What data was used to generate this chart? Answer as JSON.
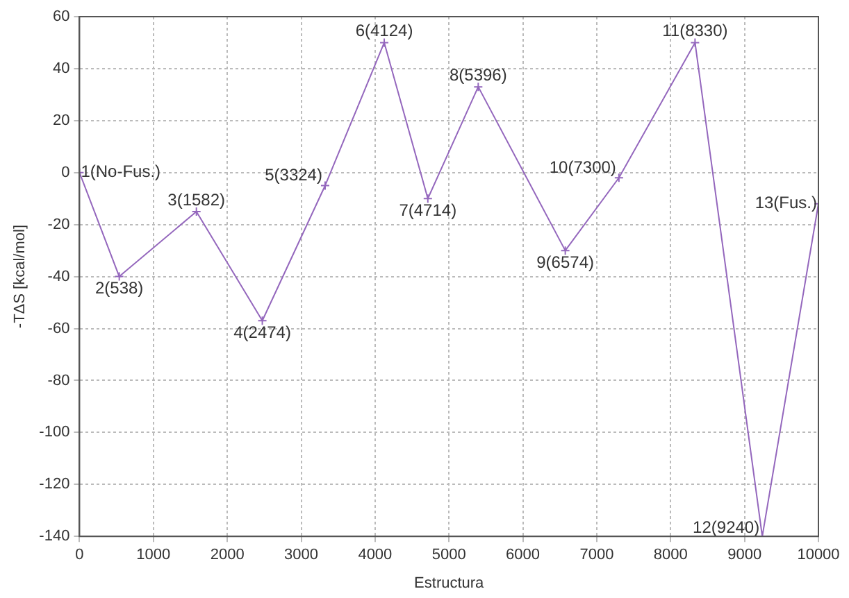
{
  "chart_data": {
    "type": "line",
    "xlabel": "Estructura",
    "ylabel": "-TΔS [kcal/mol]",
    "x": [
      0,
      538,
      1582,
      2474,
      3324,
      4124,
      4714,
      5396,
      6574,
      7300,
      8330,
      9240,
      10000
    ],
    "series": [
      {
        "color": "#9467bd",
        "values": [
          0,
          -40,
          -15,
          -57,
          -5,
          50,
          -10,
          33,
          -30,
          -2,
          50,
          -140,
          -12
        ]
      }
    ],
    "xlim": [
      0,
      10000
    ],
    "xticks": [
      0,
      1000,
      2000,
      3000,
      4000,
      5000,
      6000,
      7000,
      8000,
      9000,
      10000
    ],
    "ylim": [
      -140,
      60
    ],
    "yticks": [
      -140,
      -120,
      -100,
      -80,
      -60,
      -40,
      -20,
      0,
      20,
      40,
      60
    ],
    "grid": true,
    "marker": "cross",
    "line_style": "solid",
    "legend": false,
    "annotations": [
      {
        "text": "1(No-Fus.)",
        "x": 0,
        "y": 0
      },
      {
        "text": "2(538)",
        "x": 538,
        "y": -40
      },
      {
        "text": "3(1582)",
        "x": 1582,
        "y": -15
      },
      {
        "text": "4(2474)",
        "x": 2474,
        "y": -57
      },
      {
        "text": "5(3324)",
        "x": 3324,
        "y": -5
      },
      {
        "text": "6(4124)",
        "x": 4124,
        "y": 50
      },
      {
        "text": "7(4714)",
        "x": 4714,
        "y": -10
      },
      {
        "text": "8(5396)",
        "x": 5396,
        "y": 33
      },
      {
        "text": "9(6574)",
        "x": 6574,
        "y": -30
      },
      {
        "text": "10(7300)",
        "x": 7300,
        "y": -2
      },
      {
        "text": "11(8330)",
        "x": 8330,
        "y": 50
      },
      {
        "text": "12(9240)",
        "x": 9240,
        "y": -140
      },
      {
        "text": "13(Fus.)",
        "x": 10000,
        "y": -12
      }
    ]
  }
}
